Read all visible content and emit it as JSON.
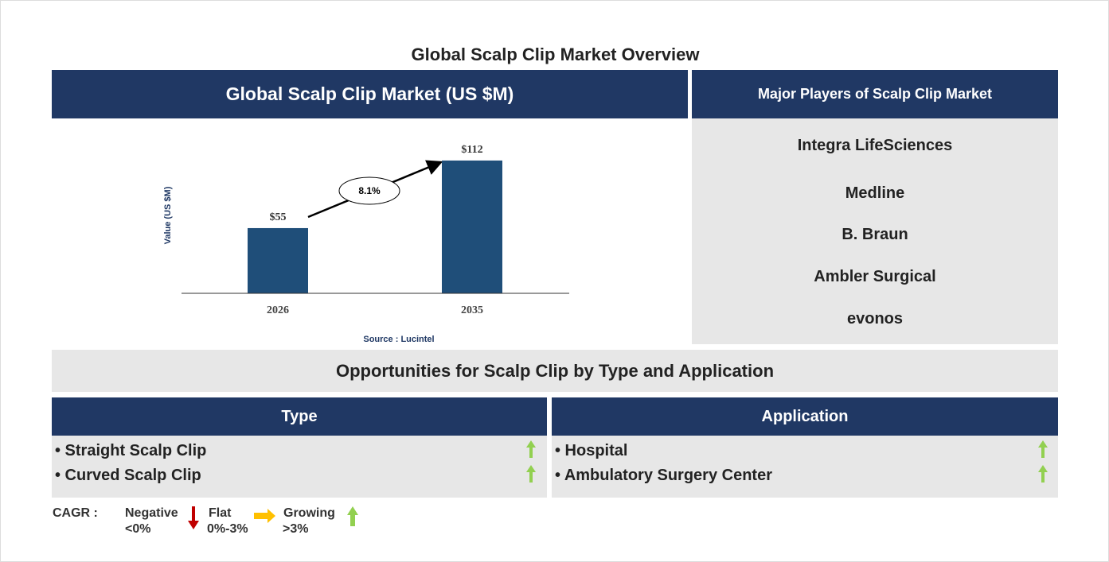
{
  "title": "Global Scalp Clip Market Overview",
  "chart_data": {
    "type": "bar",
    "title": "Global Scalp Clip Market (US $M)",
    "y_label": "Value (US $M)",
    "categories": [
      "2026",
      "2035"
    ],
    "values": [
      55,
      112
    ],
    "value_labels": [
      "$55",
      "$112"
    ],
    "color": "#1f4e79",
    "ylim": [
      0,
      120
    ],
    "cagr_label": "8.1%",
    "source": "Source : Lucintel"
  },
  "players": {
    "title": "Major Players of Scalp Clip Market",
    "names": [
      "Integra LifeSciences",
      "Medline",
      "B. Braun",
      "Ambler Surgical",
      "evonos"
    ]
  },
  "opportunities": {
    "title": "Opportunities for Scalp Clip by Type and Application",
    "type": {
      "header": "Type",
      "items": [
        "• Straight Scalp Clip",
        "• Curved Scalp Clip"
      ]
    },
    "application": {
      "header": "Application",
      "items": [
        "• Hospital",
        "• Ambulatory Surgery Center"
      ]
    }
  },
  "legend": {
    "label": "CAGR :",
    "negative": [
      "Negative",
      "<0%"
    ],
    "flat": [
      "Flat",
      "0%-3%"
    ],
    "growing": [
      "Growing",
      ">3%"
    ]
  }
}
